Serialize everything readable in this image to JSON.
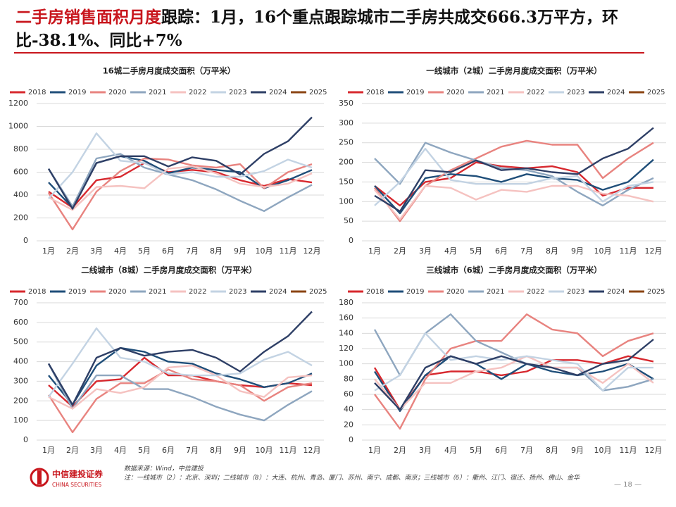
{
  "header": {
    "title_highlight": "二手房销售面积月度",
    "title_rest": "跟踪：1月，16个重点跟踪城市二手房共成交666.3万平方，环比-38.1%、同比+7%"
  },
  "chart_data": [
    {
      "type": "line",
      "title": "16城二手房月度成交面积（万平米）",
      "categories": [
        "1月",
        "2月",
        "3月",
        "4月",
        "5月",
        "6月",
        "7月",
        "8月",
        "9月",
        "10月",
        "11月",
        "12月"
      ],
      "ylim": [
        0,
        1200
      ],
      "yticks": [
        0,
        200,
        400,
        600,
        800,
        1000,
        1200
      ],
      "grid": true,
      "series": [
        {
          "name": "2018",
          "color": "#d7282e",
          "values": [
            430,
            290,
            530,
            560,
            680,
            600,
            620,
            600,
            530,
            480,
            540,
            510
          ]
        },
        {
          "name": "2019",
          "color": "#1f4e79",
          "values": [
            510,
            290,
            680,
            740,
            700,
            590,
            640,
            620,
            600,
            460,
            530,
            620
          ]
        },
        {
          "name": "2020",
          "color": "#e8837f",
          "values": [
            420,
            100,
            430,
            610,
            720,
            710,
            660,
            640,
            670,
            460,
            600,
            670
          ]
        },
        {
          "name": "2021",
          "color": "#8ea6bf",
          "values": [
            630,
            300,
            720,
            760,
            640,
            580,
            530,
            450,
            350,
            260,
            380,
            490
          ]
        },
        {
          "name": "2022",
          "color": "#f5c2c0",
          "values": [
            380,
            270,
            470,
            480,
            460,
            630,
            650,
            590,
            500,
            470,
            500,
            590
          ]
        },
        {
          "name": "2023",
          "color": "#c3d3e3",
          "values": [
            370,
            600,
            940,
            700,
            680,
            580,
            600,
            560,
            560,
            610,
            710,
            640
          ]
        },
        {
          "name": "2024",
          "color": "#2e3f66",
          "values": [
            630,
            280,
            680,
            740,
            740,
            650,
            730,
            700,
            580,
            760,
            870,
            1080
          ]
        },
        {
          "name": "2025",
          "color": "#8b4513",
          "values": [
            null,
            null,
            null,
            null,
            null,
            null,
            null,
            null,
            null,
            null,
            null,
            null
          ]
        }
      ]
    },
    {
      "type": "line",
      "title": "一线城市（2城）二手房月度成交面积（万平米）",
      "categories": [
        "1月",
        "2月",
        "3月",
        "4月",
        "5月",
        "6月",
        "7月",
        "8月",
        "9月",
        "10月",
        "11月",
        "12月"
      ],
      "ylim": [
        0,
        350
      ],
      "yticks": [
        0,
        50,
        100,
        150,
        200,
        250,
        300,
        350
      ],
      "grid": true,
      "series": [
        {
          "name": "2018",
          "color": "#d7282e",
          "values": [
            140,
            90,
            150,
            160,
            200,
            190,
            185,
            190,
            175,
            115,
            135,
            135
          ]
        },
        {
          "name": "2019",
          "color": "#1f4e79",
          "values": [
            140,
            70,
            160,
            170,
            165,
            150,
            170,
            160,
            155,
            130,
            150,
            207
          ]
        },
        {
          "name": "2020",
          "color": "#e8837f",
          "values": [
            135,
            50,
            140,
            180,
            210,
            240,
            255,
            245,
            245,
            160,
            210,
            250
          ]
        },
        {
          "name": "2021",
          "color": "#8ea6bf",
          "values": [
            210,
            145,
            250,
            225,
            205,
            185,
            180,
            165,
            125,
            90,
            130,
            160
          ]
        },
        {
          "name": "2022",
          "color": "#f5c2c0",
          "values": [
            130,
            55,
            140,
            135,
            105,
            130,
            125,
            140,
            140,
            120,
            115,
            100
          ]
        },
        {
          "name": "2023",
          "color": "#c3d3e3",
          "values": [
            90,
            150,
            235,
            155,
            145,
            145,
            145,
            160,
            165,
            100,
            140,
            150
          ]
        },
        {
          "name": "2024",
          "color": "#2e3f66",
          "values": [
            115,
            75,
            180,
            175,
            205,
            180,
            185,
            175,
            170,
            210,
            235,
            288
          ]
        },
        {
          "name": "2025",
          "color": "#8b4513",
          "values": [
            null,
            null,
            null,
            null,
            null,
            null,
            null,
            null,
            null,
            null,
            null,
            null
          ]
        }
      ]
    },
    {
      "type": "line",
      "title": "二线城市（8城）二手房月度成交面积（万平米）",
      "categories": [
        "1月",
        "2月",
        "3月",
        "4月",
        "5月",
        "6月",
        "7月",
        "8月",
        "9月",
        "10月",
        "11月",
        "12月"
      ],
      "ylim": [
        0,
        700
      ],
      "yticks": [
        0,
        100,
        200,
        300,
        400,
        500,
        600,
        700
      ],
      "grid": true,
      "series": [
        {
          "name": "2018",
          "color": "#d7282e",
          "values": [
            280,
            170,
            300,
            310,
            420,
            330,
            330,
            300,
            280,
            270,
            290,
            280
          ]
        },
        {
          "name": "2019",
          "color": "#1f4e79",
          "values": [
            330,
            180,
            380,
            470,
            450,
            400,
            390,
            340,
            310,
            270,
            290,
            340
          ]
        },
        {
          "name": "2020",
          "color": "#e8837f",
          "values": [
            230,
            40,
            210,
            290,
            290,
            360,
            310,
            300,
            280,
            200,
            270,
            290
          ]
        },
        {
          "name": "2021",
          "color": "#8ea6bf",
          "values": [
            390,
            160,
            330,
            330,
            260,
            260,
            220,
            170,
            130,
            100,
            180,
            250
          ]
        },
        {
          "name": "2022",
          "color": "#f5c2c0",
          "values": [
            220,
            160,
            260,
            240,
            270,
            370,
            380,
            330,
            250,
            220,
            320,
            330
          ]
        },
        {
          "name": "2023",
          "color": "#c3d3e3",
          "values": [
            220,
            390,
            570,
            420,
            400,
            340,
            330,
            330,
            340,
            410,
            450,
            380
          ]
        },
        {
          "name": "2024",
          "color": "#2e3f66",
          "values": [
            390,
            180,
            420,
            470,
            430,
            450,
            460,
            420,
            350,
            450,
            530,
            655
          ]
        },
        {
          "name": "2025",
          "color": "#8b4513",
          "values": [
            null,
            null,
            null,
            null,
            null,
            null,
            null,
            null,
            null,
            null,
            null,
            null
          ]
        }
      ]
    },
    {
      "type": "line",
      "title": "三线城市（6城）二手房月度成交面积（万平米）",
      "categories": [
        "1月",
        "2月",
        "3月",
        "4月",
        "5月",
        "6月",
        "7月",
        "8月",
        "9月",
        "10月",
        "11月",
        "12月"
      ],
      "ylim": [
        0,
        180
      ],
      "yticks": [
        0,
        20,
        40,
        60,
        80,
        100,
        120,
        140,
        160,
        180
      ],
      "grid": true,
      "series": [
        {
          "name": "2018",
          "color": "#d7282e",
          "values": [
            95,
            40,
            85,
            90,
            90,
            85,
            90,
            105,
            105,
            100,
            110,
            103
          ]
        },
        {
          "name": "2019",
          "color": "#1f4e79",
          "values": [
            90,
            38,
            85,
            110,
            100,
            80,
            100,
            90,
            85,
            90,
            100,
            80
          ]
        },
        {
          "name": "2020",
          "color": "#e8837f",
          "values": [
            60,
            15,
            80,
            120,
            130,
            130,
            165,
            145,
            140,
            110,
            130,
            140
          ]
        },
        {
          "name": "2021",
          "color": "#8ea6bf",
          "values": [
            145,
            85,
            140,
            165,
            130,
            115,
            100,
            95,
            95,
            65,
            70,
            80
          ]
        },
        {
          "name": "2022",
          "color": "#f5c2c0",
          "values": [
            80,
            40,
            75,
            75,
            90,
            95,
            110,
            95,
            95,
            75,
            100,
            75
          ]
        },
        {
          "name": "2023",
          "color": "#c3d3e3",
          "values": [
            65,
            85,
            140,
            105,
            110,
            105,
            110,
            105,
            100,
            65,
            95,
            95
          ]
        },
        {
          "name": "2024",
          "color": "#2e3f66",
          "values": [
            75,
            40,
            95,
            110,
            100,
            110,
            100,
            95,
            85,
            100,
            105,
            132
          ]
        },
        {
          "name": "2025",
          "color": "#8b4513",
          "values": [
            null,
            null,
            null,
            null,
            null,
            null,
            null,
            null,
            null,
            null,
            null,
            null
          ]
        }
      ]
    }
  ],
  "footer": {
    "logo_cn": "中信建投证券",
    "logo_en": "CHINA SECURITIES",
    "source": "数据来源：Wind，中信建投",
    "note": "注：一线城市（2）：北京、深圳；二线城市（8）：大连、杭州、青岛、厦门、苏州、南宁、成都、南京；三线城市（6）：衢州、江门、宿迁、扬州、佛山、金华",
    "page": "— 18 —"
  }
}
